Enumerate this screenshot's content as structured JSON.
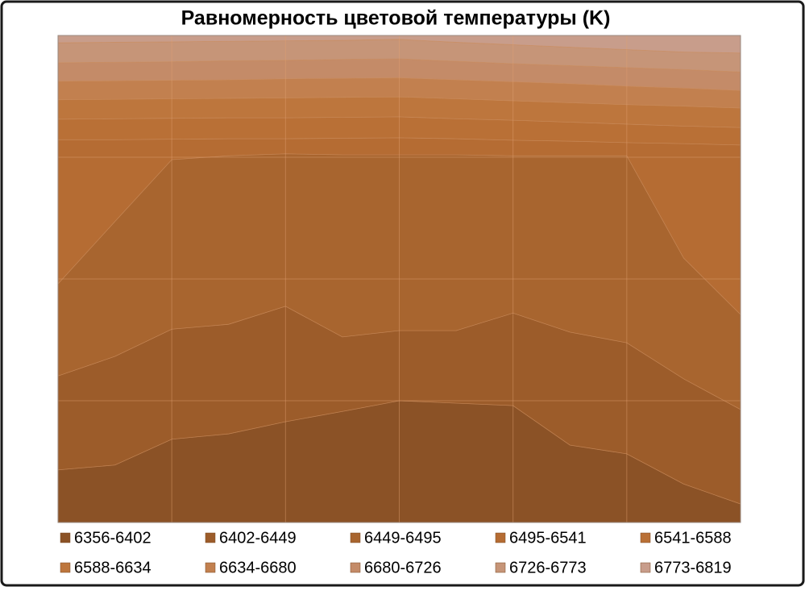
{
  "chart_data": {
    "type": "stacked-area",
    "title": "Равномерность цветовой температуры (K)",
    "ylim": [
      0,
      100
    ],
    "grid": true,
    "legend": "bottom",
    "series": [
      {
        "name": "6356-6402",
        "color": "#8b5226",
        "values": [
          10.8,
          11.8,
          17.1,
          18.2,
          20.7,
          22.8,
          25.0,
          24.5,
          24.0,
          15.9,
          14.1,
          7.9,
          3.8
        ]
      },
      {
        "name": "6402-6449",
        "color": "#9c5c2a",
        "values": [
          19.3,
          22.3,
          22.6,
          22.5,
          23.7,
          15.3,
          14.4,
          14.9,
          19.0,
          23.2,
          22.8,
          21.6,
          19.4
        ]
      },
      {
        "name": "6449-6495",
        "color": "#a8652f",
        "values": [
          18.9,
          27.7,
          34.8,
          34.6,
          31.3,
          37.4,
          36.1,
          36.1,
          32.3,
          36.2,
          38.4,
          24.8,
          19.5
        ]
      },
      {
        "name": "6495-6541",
        "color": "#b56c33",
        "values": [
          29.6,
          16.8,
          4.2,
          3.5,
          3.1,
          3.4,
          3.5,
          3.3,
          3.2,
          3.0,
          2.7,
          23.5,
          34.8
        ]
      },
      {
        "name": "6541-6588",
        "color": "#b97036",
        "values": [
          4.2,
          4.3,
          4.3,
          4.3,
          4.3,
          4.3,
          4.3,
          4.1,
          4.1,
          3.9,
          3.8,
          3.6,
          3.6
        ]
      },
      {
        "name": "6588-6634",
        "color": "#bd763d",
        "values": [
          4.0,
          4.0,
          4.0,
          4.0,
          4.1,
          4.1,
          4.1,
          4.1,
          4.0,
          4.0,
          4.0,
          4.1,
          4.0
        ]
      },
      {
        "name": "6634-6680",
        "color": "#c2804f",
        "values": [
          3.8,
          3.8,
          3.8,
          3.8,
          3.9,
          3.9,
          3.9,
          3.9,
          3.9,
          3.9,
          3.8,
          3.7,
          3.6
        ]
      },
      {
        "name": "6680-6726",
        "color": "#c48b68",
        "values": [
          3.8,
          3.8,
          3.8,
          3.9,
          3.8,
          3.9,
          3.9,
          3.8,
          3.7,
          3.7,
          3.8,
          3.8,
          3.8
        ]
      },
      {
        "name": "6726-6773",
        "color": "#c69578",
        "values": [
          4.1,
          4.1,
          4.1,
          4.0,
          4.0,
          3.9,
          4.0,
          3.9,
          3.9,
          3.8,
          3.7,
          3.6,
          3.9
        ]
      },
      {
        "name": "6773-6819",
        "color": "#c89d8b",
        "values": [
          1.5,
          1.4,
          1.3,
          1.2,
          1.1,
          1.0,
          0.8,
          1.4,
          1.9,
          2.4,
          2.9,
          3.4,
          3.6
        ]
      }
    ]
  }
}
